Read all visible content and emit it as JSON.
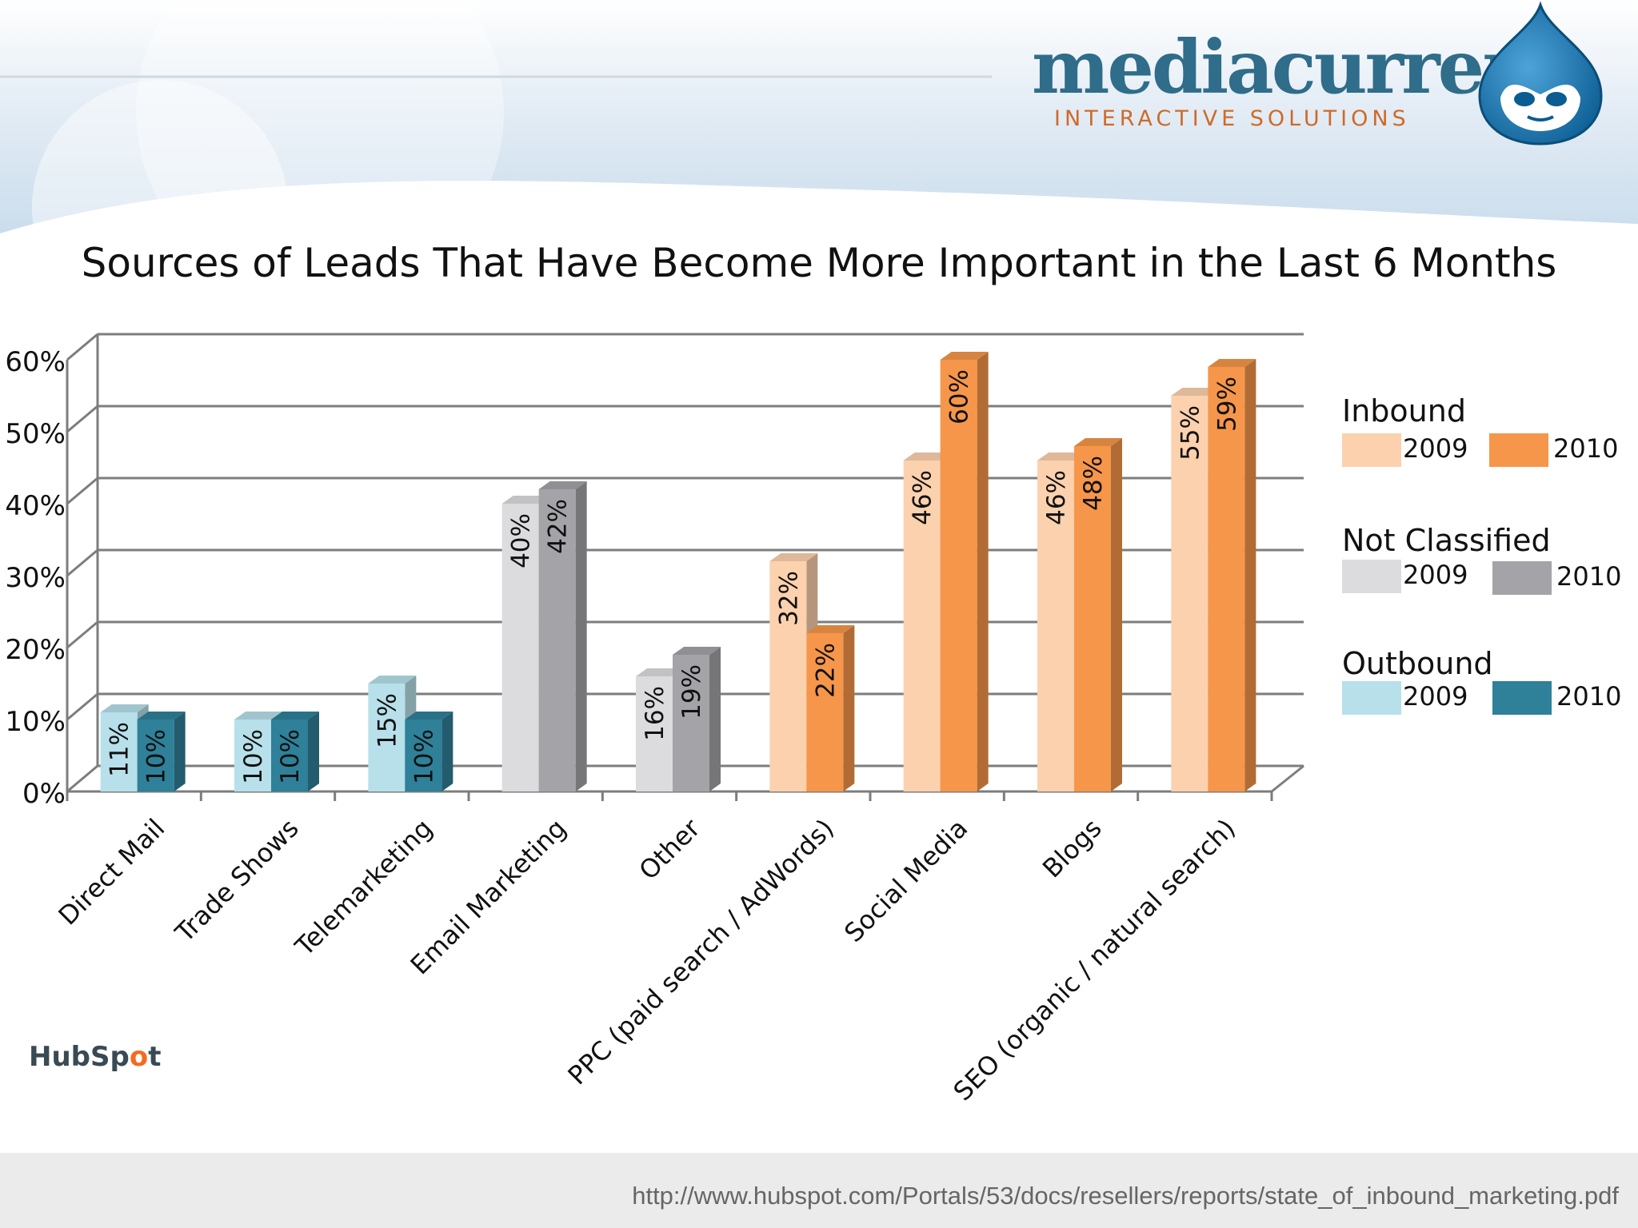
{
  "header": {
    "logo_text": "mediacurrent",
    "logo_subtitle": "INTERACTIVE SOLUTIONS",
    "drupal_icon": "drupal-drop-icon"
  },
  "chart_data": {
    "type": "bar",
    "title": "Sources of Leads That Have Become More Important in the Last 6 Months",
    "categories": [
      "Direct Mail",
      "Trade Shows",
      "Telemarketing",
      "Email Marketing",
      "Other",
      "PPC (paid search / AdWords)",
      "Social Media",
      "Blogs",
      "SEO (organic / natural search)"
    ],
    "groups": [
      "Outbound",
      "Outbound",
      "Outbound",
      "Not Classified",
      "Not Classified",
      "Inbound",
      "Inbound",
      "Inbound",
      "Inbound"
    ],
    "series": [
      {
        "name": "2009",
        "values": [
          11,
          10,
          15,
          40,
          16,
          32,
          46,
          46,
          55
        ]
      },
      {
        "name": "2010",
        "values": [
          10,
          10,
          10,
          42,
          19,
          22,
          60,
          48,
          59
        ]
      }
    ],
    "value_labels": [
      [
        "11%",
        "10%"
      ],
      [
        "10%",
        "10%"
      ],
      [
        "15%",
        "10%"
      ],
      [
        "40%",
        "42%"
      ],
      [
        "16%",
        "19%"
      ],
      [
        "32%",
        "22%"
      ],
      [
        "46%",
        "60%"
      ],
      [
        "46%",
        "48%"
      ],
      [
        "55%",
        "59%"
      ]
    ],
    "y_ticks": [
      "0%",
      "10%",
      "20%",
      "30%",
      "40%",
      "50%",
      "60%"
    ],
    "ylim": [
      0,
      60
    ],
    "grid": true,
    "legend_position": "right",
    "colors": {
      "Inbound": {
        "2009": "#fcd1ae",
        "2010": "#f6964a"
      },
      "Not Classified": {
        "2009": "#dcdcdf",
        "2010": "#a4a4a8"
      },
      "Outbound": {
        "2009": "#b7e0ea",
        "2010": "#2f8099"
      }
    }
  },
  "legend": {
    "groups": [
      {
        "title": "Inbound",
        "year_a": "2009",
        "year_b": "2010"
      },
      {
        "title": "Not Classified",
        "year_a": "2009",
        "year_b": "2010"
      },
      {
        "title": "Outbound",
        "year_a": "2009",
        "year_b": "2010"
      }
    ]
  },
  "footer": {
    "hubspot_prefix": "HubSp",
    "hubspot_o": "o",
    "hubspot_suffix": "t",
    "source_url": "http://www.hubspot.com/Portals/53/docs/resellers/reports/state_of_inbound_marketing.pdf"
  }
}
